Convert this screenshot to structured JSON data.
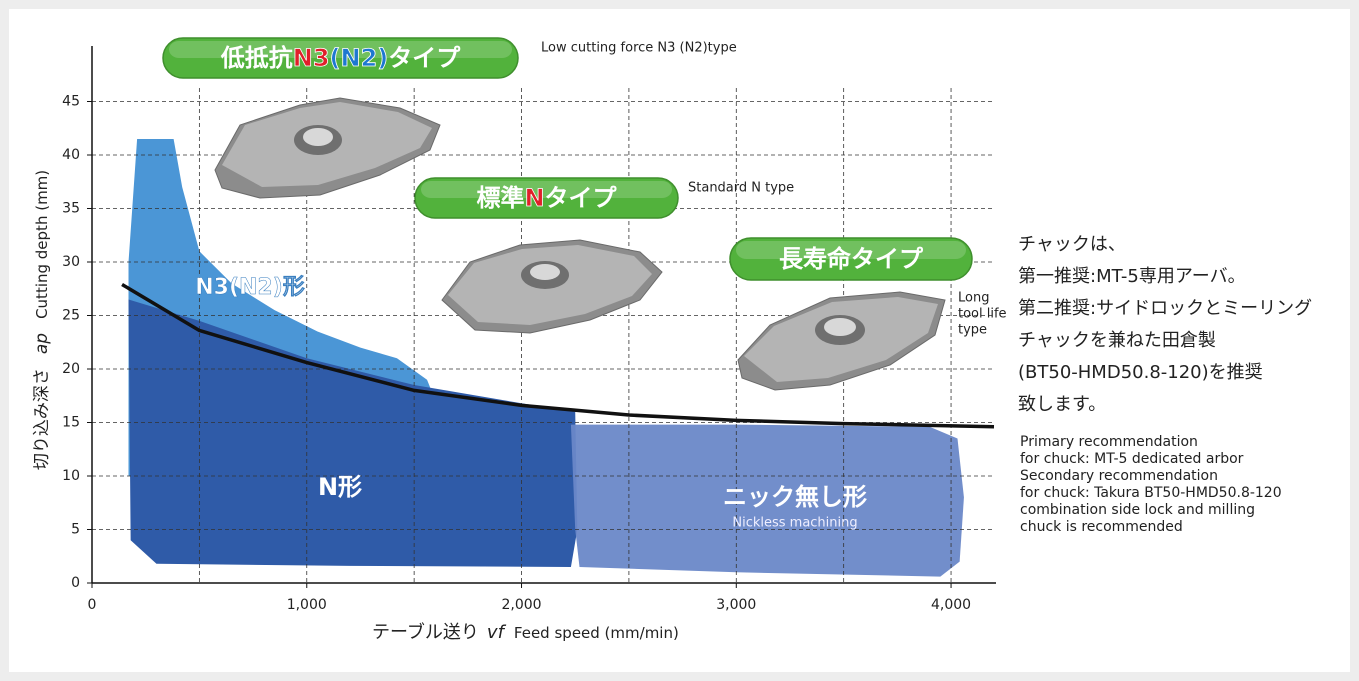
{
  "chart_data": {
    "type": "area",
    "xlim": [
      0,
      4200
    ],
    "ylim": [
      0,
      50
    ],
    "xticks": [
      0,
      {
        "value": 1000,
        "label": "1,000"
      },
      {
        "value": 2000,
        "label": "2,000"
      },
      {
        "value": 3000,
        "label": "3,000"
      },
      {
        "value": 4000,
        "label": "4,000"
      }
    ],
    "yticks": [
      0,
      5,
      10,
      15,
      20,
      25,
      30,
      35,
      40,
      45
    ],
    "xgrid": [
      500,
      1000,
      1500,
      2000,
      2500,
      3000,
      3500,
      4000
    ],
    "grid": true,
    "xlabel": {
      "ja": "テーブル送り",
      "symbol": "vf",
      "en": "Feed speed (mm/min)"
    },
    "ylabel": {
      "ja": "切り込み深さ",
      "symbol": "ap",
      "en": "Cutting depth (mm)"
    },
    "regions": [
      {
        "name": "N3(N2)形",
        "color": "#4b96d6",
        "x": [
          170,
          210,
          380,
          420,
          500,
          650,
          850,
          1050,
          1250,
          1420,
          1560,
          1600,
          1600,
          170
        ],
        "y": [
          30,
          41.5,
          41.5,
          37,
          31,
          28,
          25.5,
          23.5,
          22,
          21,
          19,
          17,
          10,
          10
        ]
      },
      {
        "name": "N形",
        "color": "#2f5ba8",
        "x": [
          170,
          500,
          1000,
          1500,
          2000,
          2250,
          2260,
          2230,
          1200,
          300,
          180
        ],
        "y": [
          26.5,
          24.5,
          21,
          18.5,
          16.8,
          16,
          5,
          1.5,
          1.6,
          1.8,
          4
        ]
      },
      {
        "name": "ニック無し形",
        "subtitle": "Nickless machining",
        "color": "#6a88c8",
        "x": [
          2230,
          3000,
          3900,
          4030,
          4060,
          4040,
          3950,
          3000,
          2270,
          2250
        ],
        "y": [
          14.8,
          14.8,
          14.6,
          13.5,
          8,
          2,
          0.6,
          1,
          1.5,
          5
        ]
      }
    ],
    "series": [
      {
        "color": "#111111",
        "x": [
          140,
          500,
          1000,
          1500,
          2000,
          2500,
          3000,
          3500,
          4200
        ],
        "values": [
          27.9,
          23.6,
          20.6,
          18,
          16.6,
          15.7,
          15.2,
          14.9,
          14.6
        ]
      }
    ],
    "badges": [
      {
        "parts": [
          {
            "text": "低抵抗",
            "color": "#ffffff"
          },
          {
            "text": "N3",
            "color": "#e0202a"
          },
          {
            "text": "(N2)",
            "color": "#1e78d0"
          },
          {
            "text": "タイプ",
            "color": "#ffffff"
          }
        ],
        "note": [
          "Low cutting force N3 (N2)type"
        ]
      },
      {
        "parts": [
          {
            "text": "標準",
            "color": "#ffffff"
          },
          {
            "text": "N",
            "color": "#e0202a"
          },
          {
            "text": "タイプ",
            "color": "#ffffff"
          }
        ],
        "note": [
          "Standard N type"
        ]
      },
      {
        "parts": [
          {
            "text": "長寿命タイプ",
            "color": "#ffffff"
          }
        ],
        "note": [
          "Long",
          "tool life",
          "type"
        ]
      }
    ]
  },
  "side_note": {
    "ja": [
      "チャックは、",
      "第一推奨:MT-5専用アーバ。",
      "第二推奨:サイドロックとミーリング",
      "チャックを兼ねた田倉製",
      "(BT50-HMD50.8-120)を推奨",
      "致します。"
    ],
    "en": [
      "Primary recommendation",
      "for chuck: MT-5 dedicated arbor",
      "Secondary recommendation",
      "for chuck: Takura BT50-HMD50.8-120",
      "combination side lock and milling",
      "chuck is recommended"
    ]
  }
}
